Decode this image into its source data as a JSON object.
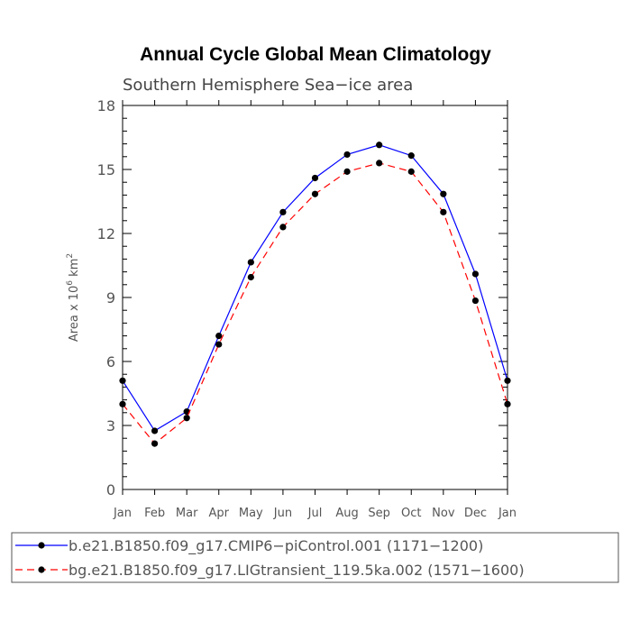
{
  "chart_data": {
    "type": "line",
    "title": "Annual Cycle Global Mean Climatology",
    "subtitle": "Southern Hemisphere Sea−ice area",
    "ylabel": {
      "prefix": "Area x 10",
      "exp": "6",
      "unit": " km",
      "unit_exp": "2"
    },
    "xlabel": "",
    "categories": [
      "Jan",
      "Feb",
      "Mar",
      "Apr",
      "May",
      "Jun",
      "Jul",
      "Aug",
      "Sep",
      "Oct",
      "Nov",
      "Dec",
      "Jan"
    ],
    "ylim": [
      0,
      18
    ],
    "yticks": [
      0,
      3,
      6,
      9,
      12,
      15,
      18
    ],
    "grid": false,
    "legend_position": "bottom",
    "series": [
      {
        "name": "b.e21.B1850.f09_g17.CMIP6−piControl.001 (1171−1200)",
        "color": "#0000ff",
        "dash": "solid",
        "values": [
          5.1,
          2.75,
          3.65,
          7.2,
          10.65,
          13.0,
          14.6,
          15.7,
          16.15,
          15.65,
          13.85,
          10.1,
          5.1
        ]
      },
      {
        "name": "bg.e21.B1850.f09_g17.LIGtransient_119.5ka.002 (1571−1600)",
        "color": "#ff0000",
        "dash": "dashed",
        "values": [
          4.0,
          2.15,
          3.35,
          6.8,
          9.95,
          12.3,
          13.85,
          14.9,
          15.3,
          14.9,
          13.0,
          8.85,
          4.0
        ]
      }
    ]
  }
}
